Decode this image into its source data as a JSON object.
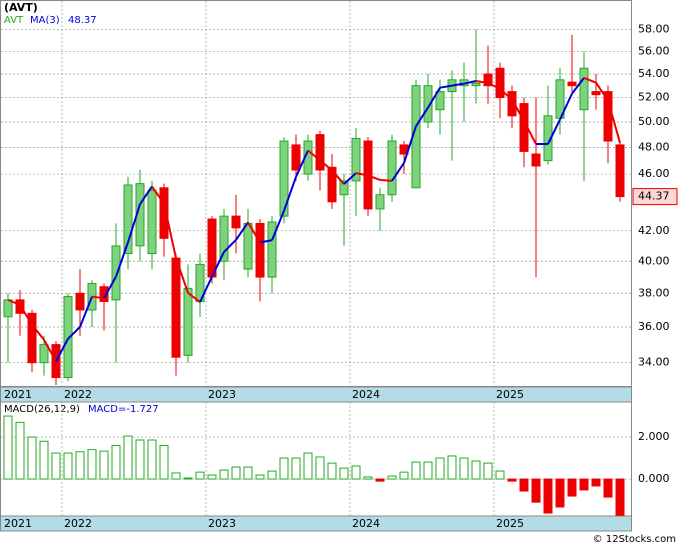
{
  "chart_data": [
    {
      "type": "candlestick",
      "title": "(AVT)",
      "name": "AVT",
      "categories": [
        "2021",
        null,
        null,
        null,
        null,
        "2022",
        null,
        null,
        null,
        null,
        null,
        null,
        null,
        null,
        null,
        null,
        null,
        "2023",
        null,
        null,
        null,
        null,
        null,
        null,
        null,
        null,
        null,
        null,
        null,
        "2024",
        null,
        null,
        null,
        null,
        null,
        null,
        null,
        null,
        null,
        null,
        null,
        "2025",
        null,
        null,
        null,
        null,
        null,
        null,
        null,
        null,
        null,
        null
      ],
      "open": [
        36.6,
        37.6,
        36.8,
        34.0,
        35.0,
        33.2,
        38.0,
        37.0,
        38.4,
        37.6,
        40.5,
        41.0,
        40.5,
        45.0,
        40.2,
        34.4,
        37.5,
        42.8,
        40.0,
        43.0,
        39.5,
        42.5,
        39.0,
        43.0,
        48.2,
        46.0,
        49.0,
        46.5,
        44.5,
        45.5,
        48.5,
        43.5,
        44.5,
        48.2,
        45.0,
        50.0,
        51.0,
        52.5,
        53.0,
        53.0,
        54.0,
        54.5,
        52.5,
        51.5,
        47.5,
        47.0,
        50.3,
        53.3,
        51.0,
        52.5,
        52.5,
        48.2
      ],
      "high": [
        38.0,
        38.2,
        37.0,
        35.5,
        35.2,
        38.0,
        39.5,
        38.8,
        38.6,
        42.5,
        45.8,
        46.3,
        45.5,
        45.3,
        40.5,
        39.8,
        40.5,
        43.0,
        43.5,
        44.5,
        43.5,
        42.8,
        43.0,
        48.8,
        49.0,
        49.0,
        49.3,
        47.5,
        46.0,
        49.5,
        48.8,
        45.0,
        49.0,
        48.5,
        53.5,
        54.0,
        53.5,
        54.3,
        55.0,
        58.0,
        56.5,
        55.0,
        53.0,
        52.0,
        52.0,
        53.0,
        54.5,
        57.5,
        56.0,
        54.0,
        53.0,
        48.5
      ],
      "low": [
        34.0,
        35.5,
        33.5,
        33.3,
        32.8,
        33.0,
        35.5,
        36.0,
        35.8,
        34.0,
        39.5,
        40.0,
        39.5,
        40.3,
        33.3,
        34.0,
        36.6,
        38.6,
        38.8,
        40.5,
        39.0,
        37.5,
        38.0,
        42.5,
        45.5,
        45.5,
        44.8,
        43.5,
        41.0,
        43.0,
        43.0,
        42.0,
        44.0,
        46.0,
        45.0,
        49.5,
        49.0,
        47.0,
        50.0,
        51.5,
        51.5,
        50.3,
        49.5,
        46.5,
        39.0,
        46.7,
        49.0,
        52.5,
        45.5,
        51.0,
        46.8,
        44.0
      ],
      "close": [
        37.6,
        36.8,
        34.0,
        35.0,
        33.2,
        37.8,
        37.0,
        38.6,
        37.5,
        41.0,
        45.2,
        45.3,
        44.8,
        41.5,
        34.3,
        38.3,
        39.8,
        39.0,
        43.0,
        42.2,
        42.5,
        39.0,
        42.6,
        48.5,
        46.3,
        48.5,
        46.3,
        44.0,
        45.5,
        48.7,
        43.5,
        44.5,
        48.5,
        47.5,
        53.0,
        53.0,
        52.5,
        53.5,
        53.5,
        53.2,
        53.0,
        52.0,
        50.5,
        47.7,
        46.6,
        50.5,
        53.5,
        53.0,
        54.5,
        52.24,
        48.5,
        44.37
      ],
      "up_color": "#22aa22",
      "down_color": "#ee0000",
      "ma": {
        "name": "MA(3)",
        "color_up": "#0000dd",
        "color_down": "#ee0000",
        "values": [
          37.6,
          37.3,
          36.13,
          35.27,
          34.07,
          35.33,
          36.0,
          37.8,
          37.7,
          39.03,
          41.23,
          43.83,
          45.1,
          43.87,
          40.2,
          38.03,
          37.47,
          39.03,
          40.6,
          41.4,
          42.57,
          41.23,
          41.37,
          43.37,
          45.8,
          47.77,
          47.03,
          46.27,
          45.27,
          46.07,
          45.9,
          45.57,
          45.5,
          46.83,
          49.67,
          51.17,
          52.83,
          53.0,
          53.17,
          53.4,
          53.23,
          52.73,
          51.83,
          50.07,
          48.27,
          48.27,
          50.2,
          52.33,
          53.67,
          53.25,
          51.75,
          48.37
        ]
      },
      "ylim": [
        32.7,
        60.8
      ],
      "log": true,
      "grid": true,
      "yticks": [
        {
          "value": 34,
          "label": "34.00"
        },
        {
          "value": 36,
          "label": "36.00"
        },
        {
          "value": 38,
          "label": "38.00"
        },
        {
          "value": 40,
          "label": "40.00"
        },
        {
          "value": 42,
          "label": "42.00"
        },
        {
          "value": 46,
          "label": "46.00"
        },
        {
          "value": 48,
          "label": "48.00"
        },
        {
          "value": 50,
          "label": "50.00"
        },
        {
          "value": 52,
          "label": "52.00"
        },
        {
          "value": 54,
          "label": "54.00"
        },
        {
          "value": 56,
          "label": "56.00"
        },
        {
          "value": 58,
          "label": "58.00"
        }
      ]
    },
    {
      "type": "bar",
      "name": "MACD(26,12,9)",
      "legend_label": "MACD=-1.727",
      "values": [
        3.0,
        2.7,
        2.0,
        1.8,
        1.24,
        1.24,
        1.3,
        1.4,
        1.33,
        1.6,
        2.05,
        1.86,
        1.86,
        1.6,
        0.29,
        0.05,
        0.33,
        0.19,
        0.43,
        0.57,
        0.57,
        0.19,
        0.38,
        1.0,
        1.0,
        1.24,
        1.05,
        0.76,
        0.52,
        0.62,
        0.1,
        -0.1,
        0.14,
        0.33,
        0.81,
        0.81,
        1.0,
        1.1,
        1.0,
        0.86,
        0.76,
        0.38,
        -0.1,
        -0.57,
        -1.1,
        -1.62,
        -1.33,
        -0.81,
        -0.52,
        -0.33,
        -0.86,
        -1.727
      ],
      "pos_color": "#22aa22",
      "neg_color": "#ee0000",
      "ylim": [
        -1.76,
        3.67
      ],
      "grid": true,
      "yticks": [
        {
          "value": 0,
          "label": "0.000"
        },
        {
          "value": 2,
          "label": "2.000"
        }
      ]
    }
  ],
  "footer": "© 12Stocks.com"
}
